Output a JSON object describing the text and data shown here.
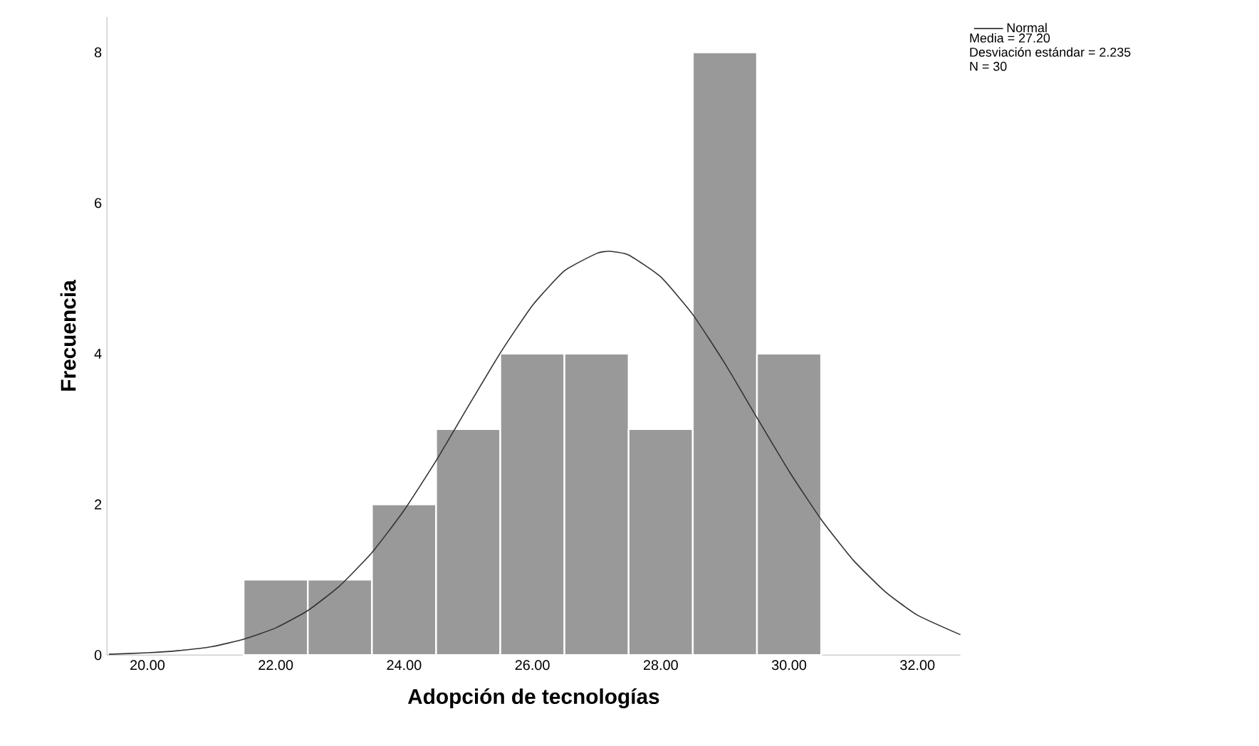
{
  "chart_data": {
    "type": "histogram",
    "xlabel": "Adopción de tecnologías",
    "ylabel": "Frecuencia",
    "bins": [
      21.5,
      22.5,
      23.5,
      24.5,
      25.5,
      26.5,
      27.5,
      28.5,
      29.5,
      30.5
    ],
    "values": [
      1,
      1,
      2,
      3,
      4,
      4,
      3,
      8,
      4
    ],
    "color": "#999999",
    "series": [
      {
        "name": "Normal",
        "type": "line",
        "color": "#333333",
        "x": [
          19.4,
          20,
          20.5,
          21,
          21.5,
          22,
          22.5,
          23,
          23.5,
          24,
          24.5,
          25,
          25.5,
          26,
          26.5,
          27,
          27.2,
          27.5,
          28,
          28.5,
          29,
          29.5,
          30,
          30.5,
          31,
          31.5,
          32,
          32.67
        ],
        "values": [
          0.01,
          0.03,
          0.06,
          0.11,
          0.21,
          0.36,
          0.59,
          0.92,
          1.36,
          1.92,
          2.58,
          3.3,
          4.01,
          4.64,
          5.1,
          5.33,
          5.36,
          5.31,
          5.02,
          4.52,
          3.87,
          3.15,
          2.44,
          1.8,
          1.26,
          0.84,
          0.53,
          0.27
        ]
      }
    ],
    "xlim": [
      19.37,
      32.67
    ],
    "ylim": [
      0,
      8.47
    ],
    "xticks": [
      {
        "value": 20,
        "label": "20.00"
      },
      {
        "value": 22,
        "label": "22.00"
      },
      {
        "value": 24,
        "label": "24.00"
      },
      {
        "value": 26,
        "label": "26.00"
      },
      {
        "value": 28,
        "label": "28.00"
      },
      {
        "value": 30,
        "label": "30.00"
      },
      {
        "value": 32,
        "label": "32.00"
      }
    ],
    "yticks": [
      0,
      2,
      4,
      6,
      8
    ],
    "legend": "top right",
    "annotations": [
      "Media = 27.20",
      "Desviación estándar = 2.235",
      "N = 30"
    ]
  }
}
